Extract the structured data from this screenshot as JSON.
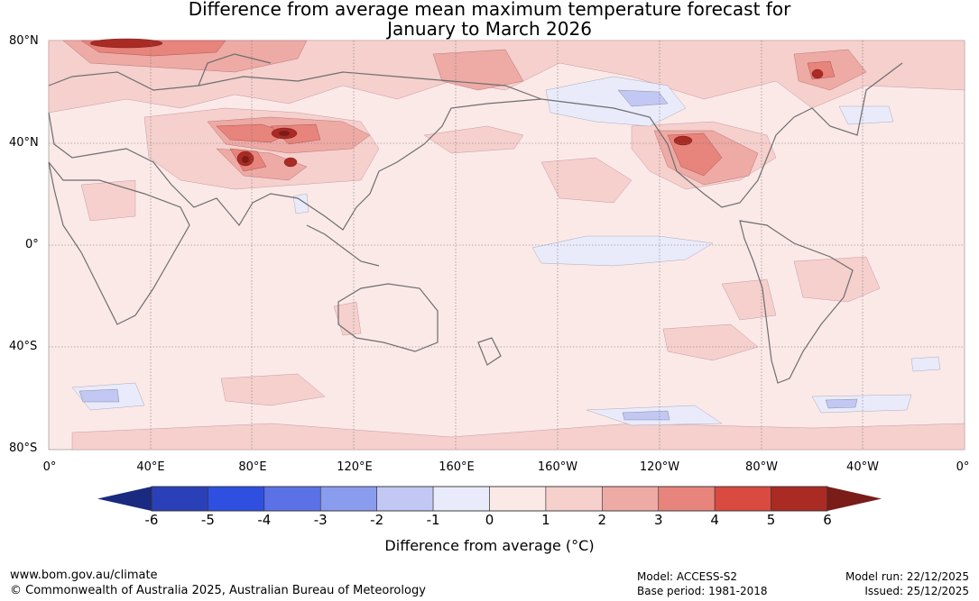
{
  "title": {
    "line1": "Difference from average mean maximum temperature forecast for",
    "line2": "January to March 2026"
  },
  "map": {
    "lat_labels": [
      "80°N",
      "40°N",
      "0°",
      "40°S",
      "80°S"
    ],
    "lon_labels": [
      "0°",
      "40°E",
      "80°E",
      "120°E",
      "160°E",
      "160°W",
      "120°W",
      "80°W",
      "40°W",
      "0°"
    ]
  },
  "colorbar": {
    "ticks": [
      "-6",
      "-5",
      "-4",
      "-3",
      "-2",
      "-1",
      "0",
      "1",
      "2",
      "3",
      "4",
      "5",
      "6"
    ],
    "colors": [
      "#1a2a80",
      "#2a40b8",
      "#2f4fe0",
      "#5a72e6",
      "#8a9ced",
      "#c2c8f3",
      "#e9ebfb",
      "#fbe9e8",
      "#f5d0cd",
      "#eeaaa5",
      "#e7847c",
      "#d94a40",
      "#aa2a24",
      "#7a1c18"
    ],
    "label": "Difference from average (°C)"
  },
  "footer": {
    "website": "www.bom.gov.au/climate",
    "copyright": "© Commonwealth of Australia 2025, Australian Bureau of Meteorology",
    "model": "Model: ACCESS-S2",
    "base_period": "Base period: 1981-2018",
    "model_run": "Model run: 22/12/2025",
    "issued": "Issued: 25/12/2025"
  }
}
